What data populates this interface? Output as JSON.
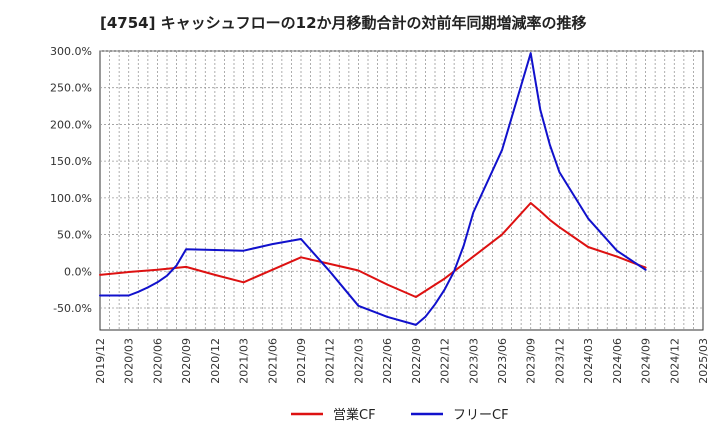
{
  "chart_data": {
    "type": "line",
    "title": "[4754]  キャッシュフローの12か月移動合計の対前年同期増減率の推移",
    "xlabel": "",
    "ylabel": "",
    "ylim": [
      -80,
      300
    ],
    "y_ticks": [
      "300.0%",
      "250.0%",
      "200.0%",
      "150.0%",
      "100.0%",
      "50.0%",
      "0.0%",
      "-50.0%"
    ],
    "y_tick_values": [
      300,
      250,
      200,
      150,
      100,
      50,
      0,
      -50
    ],
    "x_ticks": [
      "2019/12",
      "2020/03",
      "2020/06",
      "2020/09",
      "2020/12",
      "2021/03",
      "2021/06",
      "2021/09",
      "2021/12",
      "2022/03",
      "2022/06",
      "2022/09",
      "2022/12",
      "2023/03",
      "2023/06",
      "2023/09",
      "2023/12",
      "2024/03",
      "2024/06",
      "2024/09",
      "2024/12",
      "2025/03"
    ],
    "grid": true,
    "legend_position": "bottom-center",
    "series": [
      {
        "name": "営業CF",
        "color": "#dd1111",
        "points": [
          [
            "2019/12",
            -5
          ],
          [
            "2020/03",
            -1
          ],
          [
            "2020/06",
            2
          ],
          [
            "2020/09",
            6
          ],
          [
            "2020/12",
            -5
          ],
          [
            "2021/03",
            -15
          ],
          [
            "2021/06",
            2
          ],
          [
            "2021/09",
            19
          ],
          [
            "2021/12",
            10
          ],
          [
            "2022/03",
            1
          ],
          [
            "2022/06",
            -18
          ],
          [
            "2022/09",
            -35
          ],
          [
            "2022/12",
            -10
          ],
          [
            "2023/03",
            20
          ],
          [
            "2023/06",
            50
          ],
          [
            "2023/09",
            93
          ],
          [
            "2023/10",
            82
          ],
          [
            "2023/11",
            70
          ],
          [
            "2023/12",
            60
          ],
          [
            "2024/03",
            33
          ],
          [
            "2024/06",
            20
          ],
          [
            "2024/09",
            5
          ]
        ]
      },
      {
        "name": "フリーCF",
        "color": "#1111cc",
        "points": [
          [
            "2019/12",
            -33
          ],
          [
            "2020/03",
            -33
          ],
          [
            "2020/04",
            -28
          ],
          [
            "2020/05",
            -22
          ],
          [
            "2020/06",
            -15
          ],
          [
            "2020/07",
            -6
          ],
          [
            "2020/08",
            8
          ],
          [
            "2020/09",
            30
          ],
          [
            "2020/12",
            29
          ],
          [
            "2021/03",
            28
          ],
          [
            "2021/06",
            37
          ],
          [
            "2021/09",
            44
          ],
          [
            "2021/12",
            0
          ],
          [
            "2022/03",
            -47
          ],
          [
            "2022/06",
            -62
          ],
          [
            "2022/09",
            -73
          ],
          [
            "2022/10",
            -62
          ],
          [
            "2022/11",
            -45
          ],
          [
            "2022/12",
            -25
          ],
          [
            "2023/01",
            0
          ],
          [
            "2023/02",
            35
          ],
          [
            "2023/03",
            80
          ],
          [
            "2023/06",
            165
          ],
          [
            "2023/09",
            297
          ],
          [
            "2023/10",
            220
          ],
          [
            "2023/11",
            172
          ],
          [
            "2023/12",
            135
          ],
          [
            "2024/03",
            72
          ],
          [
            "2024/06",
            28
          ],
          [
            "2024/09",
            2
          ]
        ]
      }
    ]
  }
}
